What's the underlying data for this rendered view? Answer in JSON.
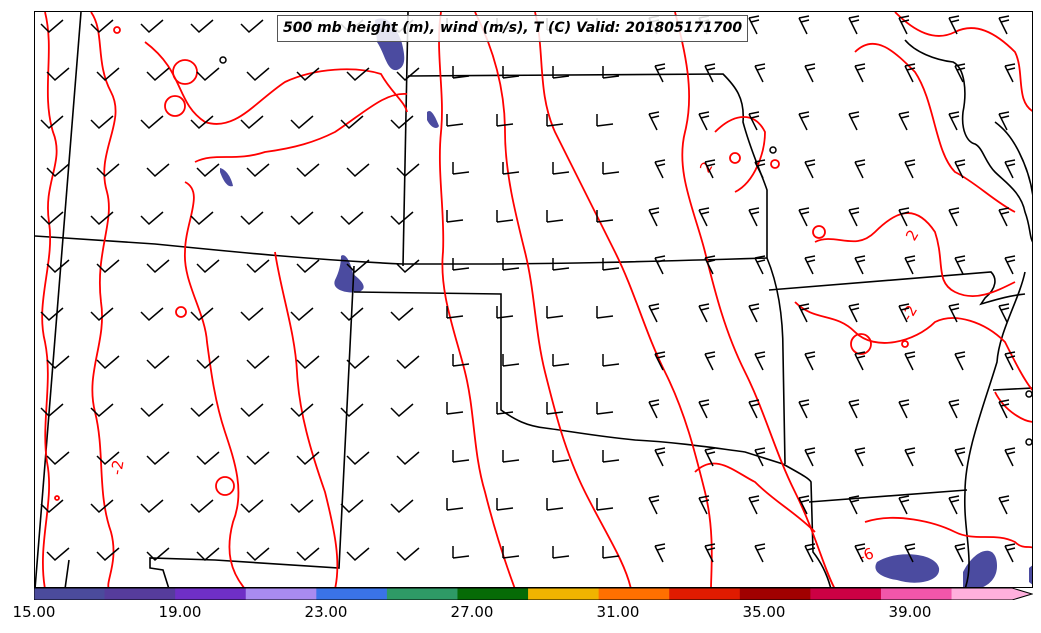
{
  "title": "500 mb height (m), wind (m/s), T (C) Valid: 201805171700",
  "contour_labels": [
    "2",
    "2",
    "-2",
    "-2",
    "-6"
  ],
  "colors": {
    "contour": "#ff0000",
    "boundary": "#000000",
    "barb": "#000000",
    "shading": "#4b4ba0"
  },
  "colorbar": {
    "min": 15,
    "max": 42,
    "tick_labels": [
      "15.00",
      "19.00",
      "23.00",
      "27.00",
      "31.00",
      "35.00",
      "39.00"
    ],
    "colors": [
      "#4b4b9c",
      "#563c9c",
      "#6f2fc6",
      "#a98bf0",
      "#3a73e8",
      "#2e9a66",
      "#066b06",
      "#f0b400",
      "#ff7000",
      "#e01b00",
      "#a00000",
      "#cc0044",
      "#f256aa",
      "#ffb0dd"
    ]
  }
}
